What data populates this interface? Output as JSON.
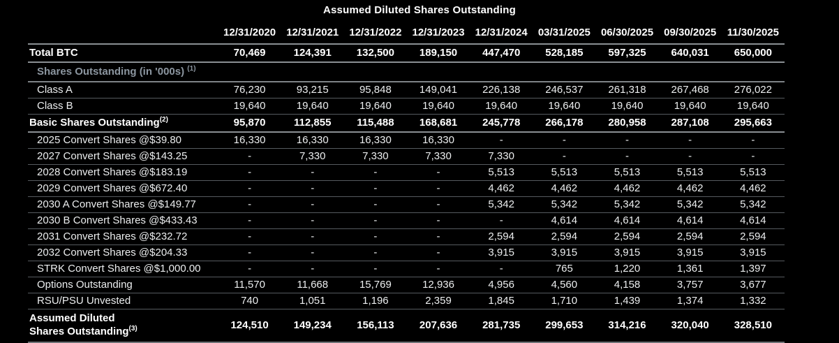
{
  "title": "Assumed Diluted Shares Outstanding",
  "colors": {
    "background": "#000000",
    "text": "#eceeef",
    "bold_text": "#ffffff",
    "section_text": "#8c96a0",
    "border_strong": "#8a8f93",
    "border_light": "#565b5f"
  },
  "table": {
    "columns": [
      "12/31/2020",
      "12/31/2021",
      "12/31/2022",
      "12/31/2023",
      "12/31/2024",
      "03/31/2025",
      "06/30/2025",
      "09/30/2025",
      "11/30/2025"
    ],
    "rows": [
      {
        "label": "Total BTC",
        "sup": "",
        "style": "total",
        "values": [
          "70,469",
          "124,391",
          "132,500",
          "189,150",
          "447,470",
          "528,185",
          "597,325",
          "640,031",
          "650,000"
        ]
      },
      {
        "label": "Shares Outstanding (in '000s)",
        "sup": "(1)",
        "sup_space": true,
        "style": "section",
        "values": []
      },
      {
        "label": "Class A",
        "sup": "",
        "style": "normal",
        "values": [
          "76,230",
          "93,215",
          "95,848",
          "149,041",
          "226,138",
          "246,537",
          "261,318",
          "267,468",
          "276,022"
        ]
      },
      {
        "label": "Class B",
        "sup": "",
        "style": "normal",
        "values": [
          "19,640",
          "19,640",
          "19,640",
          "19,640",
          "19,640",
          "19,640",
          "19,640",
          "19,640",
          "19,640"
        ]
      },
      {
        "label": "Basic Shares Outstanding",
        "sup": "(2)",
        "style": "total",
        "values": [
          "95,870",
          "112,855",
          "115,488",
          "168,681",
          "245,778",
          "266,178",
          "280,958",
          "287,108",
          "295,663"
        ]
      },
      {
        "label": "2025 Convert Shares @$39.80",
        "sup": "",
        "style": "normal",
        "values": [
          "16,330",
          "16,330",
          "16,330",
          "16,330",
          "-",
          "-",
          "-",
          "-",
          "-"
        ]
      },
      {
        "label": "2027 Convert Shares @$143.25",
        "sup": "",
        "style": "normal",
        "values": [
          "-",
          "7,330",
          "7,330",
          "7,330",
          "7,330",
          "-",
          "-",
          "-",
          "-"
        ]
      },
      {
        "label": "2028 Convert Shares @$183.19",
        "sup": "",
        "style": "normal",
        "values": [
          "-",
          "-",
          "-",
          "-",
          "5,513",
          "5,513",
          "5,513",
          "5,513",
          "5,513"
        ]
      },
      {
        "label": "2029 Convert Shares @$672.40",
        "sup": "",
        "style": "normal",
        "values": [
          "-",
          "-",
          "-",
          "-",
          "4,462",
          "4,462",
          "4,462",
          "4,462",
          "4,462"
        ]
      },
      {
        "label": "2030 A Convert Shares @$149.77",
        "sup": "",
        "style": "normal",
        "values": [
          "-",
          "-",
          "-",
          "-",
          "5,342",
          "5,342",
          "5,342",
          "5,342",
          "5,342"
        ]
      },
      {
        "label": "2030 B Convert Shares @$433.43",
        "sup": "",
        "style": "normal",
        "values": [
          "-",
          "-",
          "-",
          "-",
          "-",
          "4,614",
          "4,614",
          "4,614",
          "4,614"
        ]
      },
      {
        "label": "2031 Convert Shares @$232.72",
        "sup": "",
        "style": "normal",
        "values": [
          "-",
          "-",
          "-",
          "-",
          "2,594",
          "2,594",
          "2,594",
          "2,594",
          "2,594"
        ]
      },
      {
        "label": "2032 Convert Shares @$204.33",
        "sup": "",
        "style": "normal",
        "values": [
          "-",
          "-",
          "-",
          "-",
          "3,915",
          "3,915",
          "3,915",
          "3,915",
          "3,915"
        ]
      },
      {
        "label": "STRK Convert Shares @$1,000.00",
        "sup": "",
        "style": "normal",
        "values": [
          "-",
          "-",
          "-",
          "-",
          "-",
          "765",
          "1,220",
          "1,361",
          "1,397"
        ]
      },
      {
        "label": "Options Outstanding",
        "sup": "",
        "style": "normal",
        "values": [
          "11,570",
          "11,668",
          "15,769",
          "12,936",
          "4,956",
          "4,560",
          "4,158",
          "3,757",
          "3,677"
        ]
      },
      {
        "label": "RSU/PSU Unvested",
        "sup": "",
        "style": "normal",
        "values": [
          "740",
          "1,051",
          "1,196",
          "2,359",
          "1,845",
          "1,710",
          "1,439",
          "1,374",
          "1,332"
        ]
      },
      {
        "label": "Assumed Diluted\nShares Outstanding",
        "sup": "(3)",
        "style": "grand",
        "values": [
          "124,510",
          "149,234",
          "156,113",
          "207,636",
          "281,735",
          "299,653",
          "314,216",
          "320,040",
          "328,510"
        ]
      }
    ]
  },
  "chart_data": {
    "type": "table",
    "title": "Assumed Diluted Shares Outstanding",
    "columns": [
      "12/31/2020",
      "12/31/2021",
      "12/31/2022",
      "12/31/2023",
      "12/31/2024",
      "03/31/2025",
      "06/30/2025",
      "09/30/2025",
      "11/30/2025"
    ],
    "rows": [
      [
        "Total BTC",
        "70,469",
        "124,391",
        "132,500",
        "189,150",
        "447,470",
        "528,185",
        "597,325",
        "640,031",
        "650,000"
      ],
      [
        "Shares Outstanding (in '000s) (1)",
        "",
        "",
        "",
        "",
        "",
        "",
        "",
        "",
        ""
      ],
      [
        "Class A",
        "76,230",
        "93,215",
        "95,848",
        "149,041",
        "226,138",
        "246,537",
        "261,318",
        "267,468",
        "276,022"
      ],
      [
        "Class B",
        "19,640",
        "19,640",
        "19,640",
        "19,640",
        "19,640",
        "19,640",
        "19,640",
        "19,640",
        "19,640"
      ],
      [
        "Basic Shares Outstanding(2)",
        "95,870",
        "112,855",
        "115,488",
        "168,681",
        "245,778",
        "266,178",
        "280,958",
        "287,108",
        "295,663"
      ],
      [
        "2025 Convert Shares @$39.80",
        "16,330",
        "16,330",
        "16,330",
        "16,330",
        "-",
        "-",
        "-",
        "-",
        "-"
      ],
      [
        "2027 Convert Shares @$143.25",
        "-",
        "7,330",
        "7,330",
        "7,330",
        "7,330",
        "-",
        "-",
        "-",
        "-"
      ],
      [
        "2028 Convert Shares @$183.19",
        "-",
        "-",
        "-",
        "-",
        "5,513",
        "5,513",
        "5,513",
        "5,513",
        "5,513"
      ],
      [
        "2029 Convert Shares @$672.40",
        "-",
        "-",
        "-",
        "-",
        "4,462",
        "4,462",
        "4,462",
        "4,462",
        "4,462"
      ],
      [
        "2030 A Convert Shares @$149.77",
        "-",
        "-",
        "-",
        "-",
        "5,342",
        "5,342",
        "5,342",
        "5,342",
        "5,342"
      ],
      [
        "2030 B Convert Shares @$433.43",
        "-",
        "-",
        "-",
        "-",
        "-",
        "4,614",
        "4,614",
        "4,614",
        "4,614"
      ],
      [
        "2031 Convert Shares @$232.72",
        "-",
        "-",
        "-",
        "-",
        "2,594",
        "2,594",
        "2,594",
        "2,594",
        "2,594"
      ],
      [
        "2032 Convert Shares @$204.33",
        "-",
        "-",
        "-",
        "-",
        "3,915",
        "3,915",
        "3,915",
        "3,915",
        "3,915"
      ],
      [
        "STRK Convert Shares @$1,000.00",
        "-",
        "-",
        "-",
        "-",
        "-",
        "765",
        "1,220",
        "1,361",
        "1,397"
      ],
      [
        "Options Outstanding",
        "11,570",
        "11,668",
        "15,769",
        "12,936",
        "4,956",
        "4,560",
        "4,158",
        "3,757",
        "3,677"
      ],
      [
        "RSU/PSU Unvested",
        "740",
        "1,051",
        "1,196",
        "2,359",
        "1,845",
        "1,710",
        "1,439",
        "1,374",
        "1,332"
      ],
      [
        "Assumed Diluted Shares Outstanding(3)",
        "124,510",
        "149,234",
        "156,113",
        "207,636",
        "281,735",
        "299,653",
        "314,216",
        "320,040",
        "328,510"
      ]
    ]
  }
}
